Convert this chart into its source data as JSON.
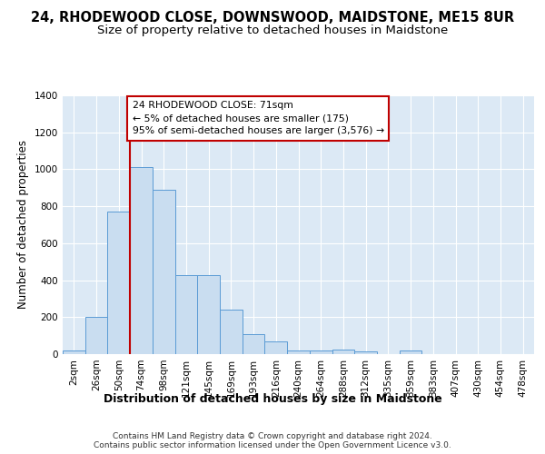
{
  "title": "24, RHODEWOOD CLOSE, DOWNSWOOD, MAIDSTONE, ME15 8UR",
  "subtitle": "Size of property relative to detached houses in Maidstone",
  "xlabel": "Distribution of detached houses by size in Maidstone",
  "ylabel": "Number of detached properties",
  "categories": [
    "2sqm",
    "26sqm",
    "50sqm",
    "74sqm",
    "98sqm",
    "121sqm",
    "145sqm",
    "169sqm",
    "193sqm",
    "216sqm",
    "240sqm",
    "264sqm",
    "288sqm",
    "312sqm",
    "335sqm",
    "359sqm",
    "383sqm",
    "407sqm",
    "430sqm",
    "454sqm",
    "478sqm"
  ],
  "values": [
    20,
    200,
    770,
    1010,
    890,
    425,
    425,
    243,
    110,
    70,
    22,
    22,
    25,
    15,
    0,
    20,
    0,
    0,
    0,
    0,
    0
  ],
  "bar_color": "#c9ddf0",
  "bar_edge_color": "#5b9bd5",
  "vline_index": 3,
  "vline_color": "#c00000",
  "annotation_text": "24 RHODEWOOD CLOSE: 71sqm\n← 5% of detached houses are smaller (175)\n95% of semi-detached houses are larger (3,576) →",
  "annotation_box_facecolor": "#ffffff",
  "annotation_box_edgecolor": "#c00000",
  "ylim": [
    0,
    1400
  ],
  "yticks": [
    0,
    200,
    400,
    600,
    800,
    1000,
    1200,
    1400
  ],
  "background_color": "#dce9f5",
  "footer_text": "Contains HM Land Registry data © Crown copyright and database right 2024.\nContains public sector information licensed under the Open Government Licence v3.0.",
  "title_fontsize": 10.5,
  "subtitle_fontsize": 9.5,
  "xlabel_fontsize": 9,
  "ylabel_fontsize": 8.5,
  "tick_fontsize": 7.5,
  "footer_fontsize": 6.5
}
